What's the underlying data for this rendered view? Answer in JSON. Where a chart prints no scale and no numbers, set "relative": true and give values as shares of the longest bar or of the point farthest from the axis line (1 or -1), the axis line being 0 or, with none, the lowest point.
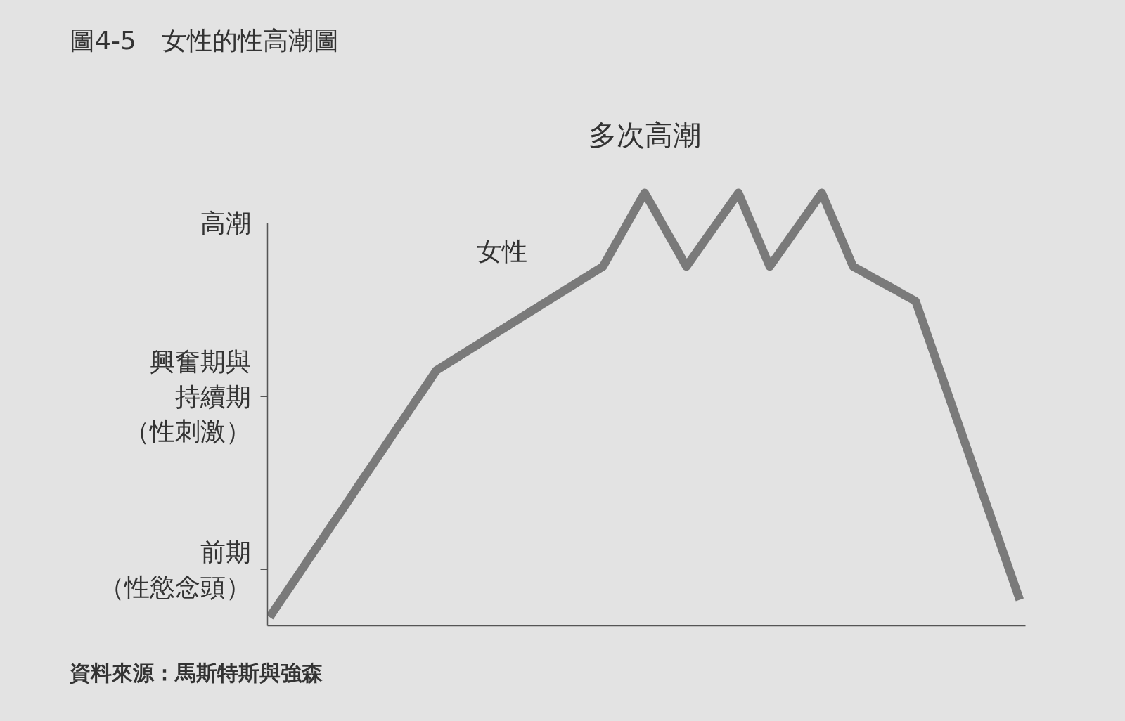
{
  "chart_data": {
    "type": "line",
    "title": "圖4-5　女性的性高潮圖",
    "relative": true,
    "categories": [
      null,
      null,
      null,
      null,
      null,
      null,
      null,
      null,
      null,
      null,
      null,
      null,
      null,
      null,
      null,
      null,
      null,
      null,
      null,
      null,
      null,
      null,
      null,
      null,
      null,
      null,
      null,
      null,
      null,
      null,
      null,
      null,
      null,
      null,
      null,
      null,
      null,
      null,
      null,
      null,
      null,
      null,
      null,
      null,
      null,
      null,
      null,
      null,
      null,
      null,
      null,
      null,
      null,
      null,
      null,
      null,
      null,
      null,
      null,
      null,
      null,
      null,
      null,
      null,
      null,
      null,
      null,
      null,
      null,
      null,
      null,
      null,
      null
    ],
    "series": [
      {
        "name": "女性",
        "color": "#7a7a7a",
        "values": [
          0.02,
          0.056,
          0.091,
          0.127,
          0.163,
          0.198,
          0.234,
          0.269,
          0.305,
          0.341,
          0.376,
          0.412,
          0.448,
          0.483,
          0.519,
          0.554,
          0.59,
          0.605,
          0.62,
          0.635,
          0.65,
          0.665,
          0.68,
          0.695,
          0.71,
          0.725,
          0.74,
          0.755,
          0.77,
          0.785,
          0.8,
          0.815,
          0.83,
          0.873,
          0.915,
          0.958,
          1,
          0.958,
          0.915,
          0.873,
          0.83,
          0.864,
          0.898,
          0.932,
          0.966,
          1,
          0.943,
          0.887,
          0.83,
          0.864,
          0.898,
          0.932,
          0.966,
          1,
          0.943,
          0.887,
          0.83,
          0.817,
          0.803,
          0.79,
          0.777,
          0.763,
          0.75,
          0.681,
          0.612,
          0.543,
          0.474,
          0.405,
          0.336,
          0.267,
          0.198,
          0.129,
          0.06
        ]
      }
    ],
    "annotations": [
      {
        "text": "多次高潮",
        "y": 1
      },
      "高潮",
      "興奮期與持續期（性刺激）",
      "前期（性慾念頭）",
      "資料來源：馬斯特斯與強森"
    ],
    "line_style": "solid"
  }
}
